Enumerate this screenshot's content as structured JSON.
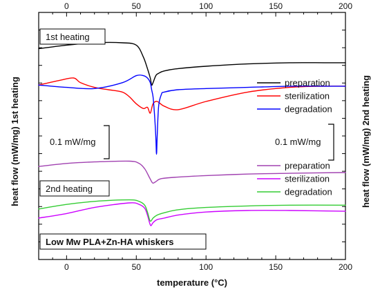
{
  "chart_data": {
    "type": "line",
    "xlabel_prefix": "temperature (",
    "xlabel_unit": "°C",
    "xlabel_suffix": ")",
    "ylabel_left": "heat flow (mW/mg) 1st heating",
    "ylabel_right": "heat flow (mW/mg) 2nd heating",
    "xlim": [
      -20,
      200
    ],
    "bottom_ticks": [
      0,
      50,
      100,
      150,
      200
    ],
    "top_ticks": [
      0,
      50,
      100,
      150,
      200
    ],
    "grid": false,
    "annotations": {
      "first_heating": "1st heating",
      "second_heating": "2nd heating",
      "sample": "Low Mw PLA+Zn-HA whiskers",
      "scale_left": "0.1 mW/mg",
      "scale_right": "0.1 mW/mg"
    },
    "panels": [
      {
        "name": "1st heating",
        "legend_placement": "right",
        "series": [
          {
            "name": "preparation",
            "color": "#000000",
            "x": [
              -20,
              0,
              20,
              40,
              50,
              55,
              58,
              60,
              61,
              62,
              64,
              66,
              70,
              80,
              100,
              130,
              160,
              185,
              200
            ],
            "y": [
              0.95,
              0.98,
              1.0,
              1.0,
              0.98,
              0.88,
              0.78,
              0.7,
              0.64,
              0.66,
              0.72,
              0.74,
              0.76,
              0.78,
              0.8,
              0.82,
              0.83,
              0.83,
              0.83
            ]
          },
          {
            "name": "sterilization",
            "color": "#ff0000",
            "x": [
              -20,
              -5,
              5,
              10,
              20,
              30,
              40,
              45,
              50,
              55,
              58,
              60,
              62,
              65,
              70,
              80,
              100,
              130,
              160,
              185,
              200
            ],
            "y": [
              0.64,
              0.68,
              0.7,
              0.66,
              0.62,
              0.6,
              0.58,
              0.54,
              0.48,
              0.44,
              0.45,
              0.4,
              0.48,
              0.5,
              0.46,
              0.43,
              0.5,
              0.58,
              0.62,
              0.63,
              0.63
            ]
          },
          {
            "name": "degradation",
            "color": "#0000ff",
            "x": [
              -20,
              0,
              20,
              40,
              50,
              55,
              58,
              60,
              61,
              62,
              63,
              64,
              64.5,
              65,
              66,
              68,
              70,
              80,
              100,
              130,
              160,
              185,
              200
            ],
            "y": [
              0.64,
              0.62,
              0.61,
              0.66,
              0.72,
              0.72,
              0.7,
              0.66,
              0.6,
              0.54,
              0.4,
              0.2,
              0.05,
              0.2,
              0.46,
              0.56,
              0.58,
              0.6,
              0.61,
              0.62,
              0.63,
              0.63,
              0.63
            ]
          }
        ]
      },
      {
        "name": "2nd heating",
        "legend_placement": "right",
        "series": [
          {
            "name": "preparation",
            "color": "#a040b0",
            "x": [
              -20,
              0,
              20,
              45,
              52,
              56,
              59,
              61,
              62,
              64,
              68,
              80,
              100,
              130,
              160,
              200
            ],
            "y": [
              0.88,
              0.92,
              0.94,
              0.95,
              0.92,
              0.85,
              0.75,
              0.68,
              0.66,
              0.68,
              0.72,
              0.74,
              0.76,
              0.78,
              0.79,
              0.8
            ]
          },
          {
            "name": "sterilization",
            "color": "#cc00ff",
            "x": [
              -20,
              0,
              20,
              45,
              52,
              56,
              58,
              59.5,
              60.5,
              62,
              65,
              70,
              80,
              100,
              130,
              160,
              200
            ],
            "y": [
              0.2,
              0.26,
              0.34,
              0.4,
              0.38,
              0.33,
              0.24,
              0.14,
              0.1,
              0.14,
              0.18,
              0.2,
              0.24,
              0.28,
              0.3,
              0.3,
              0.29
            ]
          },
          {
            "name": "degradation",
            "color": "#33cc33",
            "x": [
              -20,
              0,
              20,
              45,
              52,
              56,
              58,
              59.5,
              60.5,
              62,
              65,
              70,
              80,
              100,
              130,
              160,
              200
            ],
            "y": [
              0.32,
              0.38,
              0.42,
              0.44,
              0.42,
              0.37,
              0.28,
              0.18,
              0.16,
              0.2,
              0.24,
              0.27,
              0.31,
              0.34,
              0.36,
              0.37,
              0.37
            ]
          }
        ]
      }
    ]
  }
}
